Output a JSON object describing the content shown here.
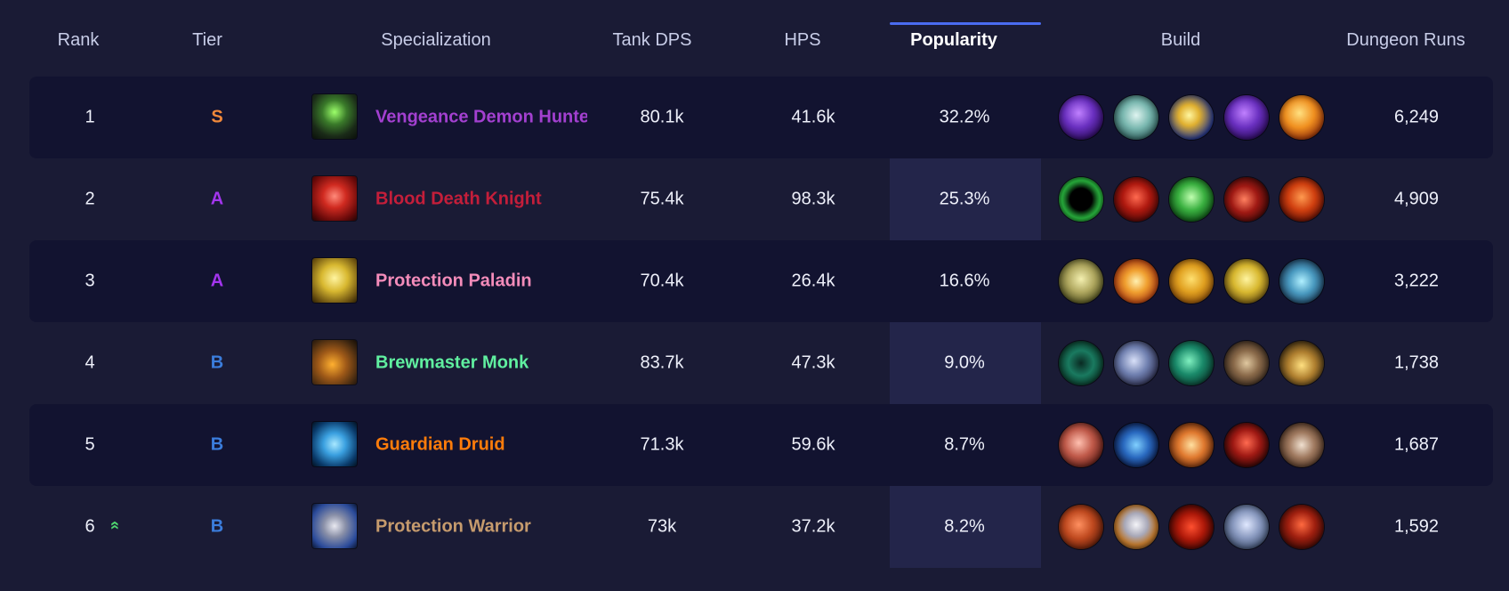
{
  "header": {
    "rank": "Rank",
    "tier": "Tier",
    "specialization": "Specialization",
    "tank_dps": "Tank DPS",
    "hps": "HPS",
    "popularity": "Popularity",
    "build": "Build",
    "dungeon_runs": "Dungeon Runs"
  },
  "rows": [
    {
      "rank": "1",
      "tier": "S",
      "tier_color": "#f0883a",
      "spec": "Vengeance Demon Hunter",
      "spec_color": "#a340d0",
      "spec_icon": "vengeance-demon-hunter-icon",
      "tank_dps": "80.1k",
      "hps": "41.6k",
      "popularity": "32.2%",
      "runs": "6,249",
      "build_icons": [
        "demonic-sigil-icon",
        "skull-talent-icon",
        "fel-blade-icon",
        "demonic-sigil-icon",
        "fire-spirit-icon"
      ]
    },
    {
      "rank": "2",
      "tier": "A",
      "tier_color": "#a335ee",
      "spec": "Blood Death Knight",
      "spec_color": "#c41e3a",
      "spec_icon": "blood-death-knight-icon",
      "tank_dps": "75.4k",
      "hps": "98.3k",
      "popularity": "25.3%",
      "runs": "4,909",
      "build_icons": [
        "dark-portal-icon",
        "blood-skull-icon",
        "green-skull-icon",
        "blood-claw-icon",
        "blood-beast-icon"
      ]
    },
    {
      "rank": "3",
      "tier": "A",
      "tier_color": "#a335ee",
      "spec": "Protection Paladin",
      "spec_color": "#f48cba",
      "spec_icon": "protection-paladin-icon",
      "tank_dps": "70.4k",
      "hps": "26.4k",
      "popularity": "16.6%",
      "runs": "3,222",
      "build_icons": [
        "lion-head-icon",
        "holy-pillar-icon",
        "golden-guardian-icon",
        "golden-helm-icon",
        "ornate-shield-icon"
      ]
    },
    {
      "rank": "4",
      "tier": "B",
      "tier_color": "#3b7ddc",
      "spec": "Brewmaster Monk",
      "spec_color": "#60f0a0",
      "spec_icon": "brewmaster-monk-icon",
      "tank_dps": "83.7k",
      "hps": "47.3k",
      "popularity": "9.0%",
      "runs": "1,738",
      "build_icons": [
        "jade-swirl-icon",
        "palm-strike-icon",
        "jade-fist-icon",
        "keg-icon",
        "brew-blast-icon"
      ]
    },
    {
      "rank": "5",
      "tier": "B",
      "tier_color": "#3b7ddc",
      "spec": "Guardian Druid",
      "spec_color": "#ff7c0a",
      "spec_icon": "guardian-druid-icon",
      "tank_dps": "71.3k",
      "hps": "59.6k",
      "popularity": "8.7%",
      "runs": "1,687",
      "build_icons": [
        "bear-maul-icon",
        "storm-claw-icon",
        "radiant-star-icon",
        "dragon-claw-icon",
        "bear-paw-icon"
      ]
    },
    {
      "rank": "6",
      "tier": "B",
      "tier_color": "#3b7ddc",
      "spec": "Protection Warrior",
      "spec_color": "#c69b6d",
      "spec_icon": "protection-warrior-icon",
      "tank_dps": "73k",
      "hps": "37.2k",
      "popularity": "8.2%",
      "runs": "1,592",
      "trend_icon": "rank-up-chevron-icon",
      "build_icons": [
        "warrior-rage-icon",
        "steel-shield-icon",
        "crimson-moon-icon",
        "valkyr-icon",
        "titan-icon"
      ]
    }
  ],
  "colors": {
    "background": "#1a1b35",
    "row_alt": "#121330",
    "popularity_highlight": "#23254a",
    "sort_indicator": "#4a6cf0",
    "trend_up": "#4fd870"
  }
}
